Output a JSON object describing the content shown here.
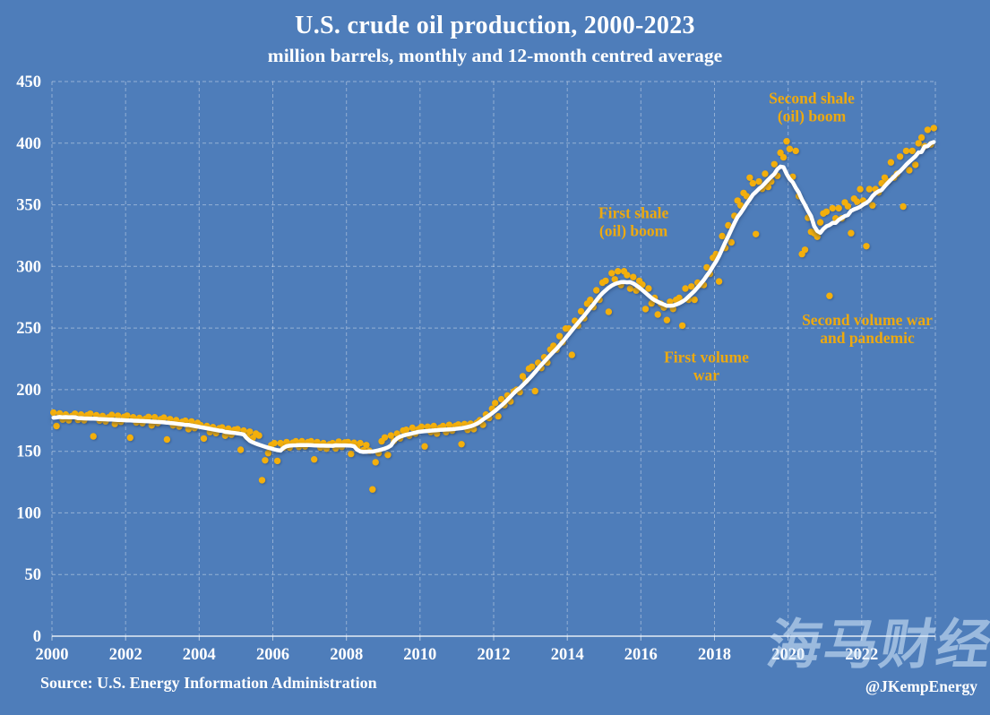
{
  "colors": {
    "background": "#4E7DBA",
    "marker": "#F3AF0C",
    "average_line": "#FFFFFF",
    "annotation_text": "#EDA90F",
    "gridline": "#FFFFFF",
    "tick_label": "#FFFFFF"
  },
  "footer": {
    "source": "Source: U.S. Energy Information Administration",
    "handle": "@JKempEnergy"
  },
  "watermark": {
    "text": "海马财经"
  },
  "chart_data": {
    "type": "scatter",
    "title": "U.S. crude oil production, 2000-2023",
    "subtitle": "million barrels, monthly and 12-month centred average",
    "x_axis": {
      "min": 2000,
      "max": 2024,
      "tick_years": [
        2000,
        2002,
        2004,
        2006,
        2008,
        2010,
        2012,
        2014,
        2016,
        2018,
        2020,
        2022
      ],
      "gridline_years": [
        2000,
        2002,
        2004,
        2006,
        2008,
        2010,
        2012,
        2014,
        2016,
        2018,
        2020,
        2022,
        2024
      ]
    },
    "y_axis": {
      "min": 0,
      "max": 450,
      "ticks": [
        0,
        50,
        100,
        150,
        200,
        250,
        300,
        350,
        400,
        450
      ],
      "grid": true
    },
    "legend": "none",
    "x_unit": "months, Jan 2000 - Dec 2023",
    "y_unit": "million barrels per month",
    "series": [
      {
        "name": "monthly",
        "style": "scatter",
        "start_year": 2000,
        "values": [
          181.4,
          170.5,
          180.7,
          175.8,
          179.8,
          175.2,
          178.6,
          180.4,
          175.5,
          179.8,
          175.2,
          179.2,
          180.4,
          162.1,
          179.2,
          174.9,
          178.6,
          174.3,
          177.6,
          179.5,
          172.2,
          178.9,
          174.0,
          177.9,
          178.9,
          161.0,
          177.6,
          173.4,
          177.0,
          172.8,
          176.4,
          177.9,
          171.0,
          177.6,
          172.8,
          176.1,
          177.3,
          159.6,
          176.1,
          171.0,
          175.2,
          170.1,
          173.9,
          174.8,
          168.0,
          174.2,
          168.9,
          173.0,
          171.1,
          160.4,
          170.5,
          165.6,
          169.6,
          164.7,
          168.6,
          169.3,
          162.6,
          168.3,
          163.5,
          167.4,
          168.0,
          151.2,
          166.8,
          162.0,
          165.9,
          160.8,
          164.3,
          162.8,
          126.6,
          142.6,
          148.5,
          155.0,
          156.6,
          142.2,
          156.6,
          153.0,
          157.5,
          153.0,
          156.9,
          158.1,
          153.6,
          158.1,
          153.9,
          157.5,
          158.1,
          143.4,
          157.5,
          153.0,
          156.6,
          152.1,
          155.6,
          156.6,
          152.4,
          157.8,
          153.6,
          157.2,
          157.5,
          147.9,
          156.9,
          152.7,
          156.6,
          150.9,
          155.0,
          150.4,
          119.1,
          141.1,
          148.5,
          158.1,
          161.2,
          147.0,
          162.8,
          158.4,
          164.3,
          160.5,
          166.8,
          167.4,
          162.6,
          169.0,
          164.4,
          168.0,
          169.9,
          154.0,
          169.9,
          165.6,
          170.5,
          164.4,
          169.0,
          170.5,
          165.6,
          171.4,
          166.8,
          170.5,
          171.7,
          155.7,
          172.1,
          167.4,
          172.4,
          168.0,
          173.0,
          175.2,
          171.6,
          179.8,
          177.0,
          184.5,
          189.1,
          178.4,
          192.2,
          187.5,
          195.3,
          190.5,
          198.4,
          200.0,
          198.0,
          210.8,
          207.0,
          217.0,
          218.6,
          198.8,
          221.7,
          217.5,
          226.3,
          222.0,
          232.5,
          235.6,
          232.5,
          243.4,
          238.5,
          249.6,
          249.6,
          228.2,
          255.8,
          252.0,
          263.5,
          258.0,
          269.7,
          272.8,
          267.0,
          280.6,
          273.0,
          286.8,
          288.3,
          263.2,
          294.5,
          289.5,
          296.1,
          285.0,
          296.1,
          293.0,
          282.0,
          291.4,
          280.5,
          288.3,
          285.2,
          265.4,
          282.1,
          270.0,
          274.4,
          261.0,
          269.7,
          266.6,
          256.5,
          271.3,
          265.5,
          272.8,
          274.4,
          252.0,
          282.1,
          273.0,
          283.7,
          273.0,
          286.8,
          285.2,
          285.0,
          299.2,
          294.0,
          306.9,
          310.0,
          287.8,
          324.6,
          315.0,
          333.3,
          319.5,
          341.0,
          353.4,
          349.5,
          359.6,
          357.0,
          372.0,
          367.4,
          326.2,
          368.9,
          363.0,
          375.1,
          364.5,
          368.9,
          382.9,
          373.5,
          392.2,
          388.5,
          401.5,
          395.3,
          372.7,
          393.7,
          357.0,
          310.0,
          313.5,
          339.5,
          328.0,
          327.0,
          324.0,
          335.7,
          342.9,
          344.4,
          276.1,
          347.2,
          339.0,
          347.2,
          339.0,
          351.9,
          348.8,
          327.0,
          355.0,
          352.5,
          362.7,
          353.4,
          316.4,
          362.7,
          349.5,
          362.7,
          360.0,
          367.4,
          372.0,
          369.0,
          384.4,
          372.0,
          375.1,
          389.1,
          348.6,
          393.7,
          378.0,
          393.7,
          382.5,
          399.9,
          404.6,
          397.5,
          410.8,
          399.0,
          412.3
        ]
      },
      {
        "name": "12-month centred average",
        "style": "line",
        "derived_from": "monthly",
        "derivation": "12-month centred moving average (partial windows at ends)"
      }
    ],
    "annotations": [
      {
        "lines": [
          "Second shale",
          "(oil) boom"
        ],
        "x": 2020.64,
        "y": 430
      },
      {
        "lines": [
          "First shale",
          "(oil) boom"
        ],
        "x": 2015.8,
        "y": 337
      },
      {
        "lines": [
          "First volume",
          "war"
        ],
        "x": 2017.78,
        "y": 220
      },
      {
        "lines": [
          "Second volume war",
          "and pandemic"
        ],
        "x": 2022.15,
        "y": 250
      }
    ]
  }
}
